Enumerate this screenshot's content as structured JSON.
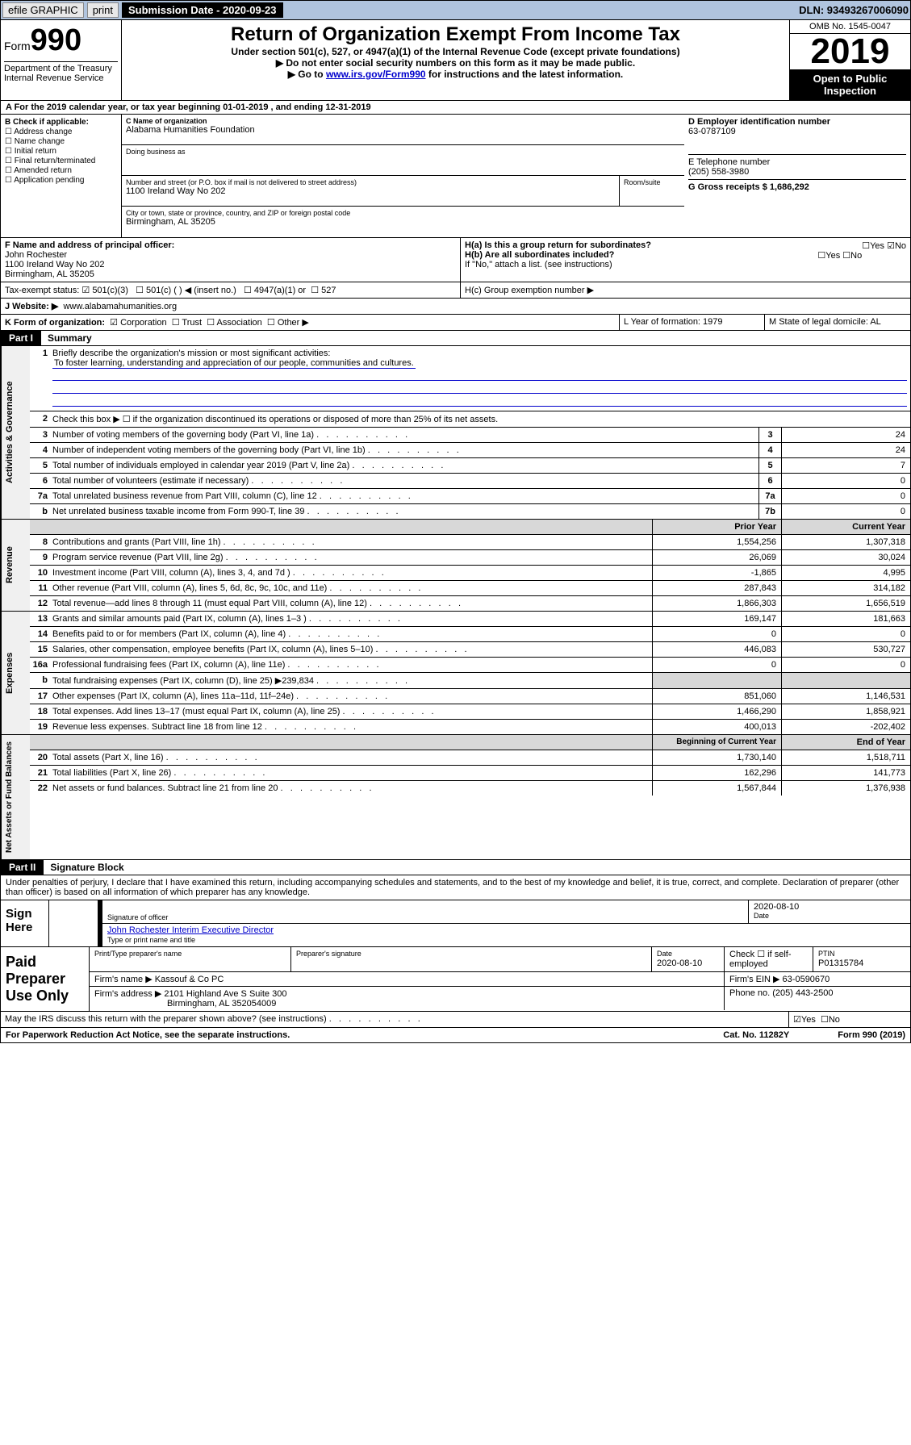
{
  "topbar": {
    "efile": "efile GRAPHIC",
    "print": "print",
    "sub_label": "Submission Date - 2020-09-23",
    "dln": "DLN: 93493267006090"
  },
  "header": {
    "form": "Form",
    "formnum": "990",
    "dept": "Department of the Treasury Internal Revenue Service",
    "title": "Return of Organization Exempt From Income Tax",
    "sub1": "Under section 501(c), 527, or 4947(a)(1) of the Internal Revenue Code (except private foundations)",
    "sub2": "▶ Do not enter social security numbers on this form as it may be made public.",
    "sub3a": "▶ Go to ",
    "sub3link": "www.irs.gov/Form990",
    "sub3b": " for instructions and the latest information.",
    "omb": "OMB No. 1545-0047",
    "year": "2019",
    "inspect": "Open to Public Inspection"
  },
  "sectA": "A For the 2019 calendar year, or tax year beginning 01-01-2019   , and ending 12-31-2019",
  "sectB": {
    "label": "B Check if applicable:",
    "items": [
      "Address change",
      "Name change",
      "Initial return",
      "Final return/terminated",
      "Amended return",
      "Application pending"
    ]
  },
  "sectC": {
    "label": "C Name of organization",
    "name": "Alabama Humanities Foundation",
    "dba_label": "Doing business as",
    "addr_label": "Number and street (or P.O. box if mail is not delivered to street address)",
    "room_label": "Room/suite",
    "addr": "1100 Ireland Way No 202",
    "city_label": "City or town, state or province, country, and ZIP or foreign postal code",
    "city": "Birmingham, AL  35205"
  },
  "sectD": {
    "label": "D Employer identification number",
    "val": "63-0787109"
  },
  "sectE": {
    "label": "E Telephone number",
    "val": "(205) 558-3980"
  },
  "sectG": {
    "label": "G Gross receipts $ 1,686,292"
  },
  "sectF": {
    "label": "F  Name and address of principal officer:",
    "name": "John Rochester",
    "addr": "1100 Ireland Way No 202",
    "city": "Birmingham, AL  35205"
  },
  "sectH": {
    "a": "H(a)  Is this a group return for subordinates?",
    "b": "H(b)  Are all subordinates included?",
    "bnote": "If \"No,\" attach a list. (see instructions)",
    "c": "H(c)  Group exemption number ▶",
    "yes": "Yes",
    "no": "No"
  },
  "sectI": {
    "label": "Tax-exempt status:",
    "opts": [
      "501(c)(3)",
      "501(c) (  ) ◀ (insert no.)",
      "4947(a)(1) or",
      "527"
    ]
  },
  "sectJ": {
    "label": "J     Website: ▶",
    "val": "www.alabamahumanities.org"
  },
  "sectK": {
    "label": "K Form of organization:",
    "opts": [
      "Corporation",
      "Trust",
      "Association",
      "Other ▶"
    ]
  },
  "sectL": {
    "label": "L Year of formation: 1979"
  },
  "sectM": {
    "label": "M State of legal domicile: AL"
  },
  "part1": {
    "label": "Part I",
    "title": "Summary"
  },
  "summary_lines": {
    "l1": "Briefly describe the organization's mission or most significant activities:",
    "l1v": "To foster learning, understanding and appreciation of our people, communities and cultures.",
    "l2": "Check this box ▶ ☐  if the organization discontinued its operations or disposed of more than 25% of its net assets.",
    "l3": "Number of voting members of the governing body (Part VI, line 1a)",
    "l4": "Number of independent voting members of the governing body (Part VI, line 1b)",
    "l5": "Total number of individuals employed in calendar year 2019 (Part V, line 2a)",
    "l6": "Total number of volunteers (estimate if necessary)",
    "l7a": "Total unrelated business revenue from Part VIII, column (C), line 12",
    "l7b": "Net unrelated business taxable income from Form 990-T, line 39"
  },
  "summary_vals": {
    "l3": "24",
    "l4": "24",
    "l5": "7",
    "l6": "0",
    "l7a": "0",
    "l7b": "0"
  },
  "rev_head": {
    "prior": "Prior Year",
    "cur": "Current Year",
    "beg": "Beginning of Current Year",
    "end": "End of Year"
  },
  "revenue": [
    {
      "n": "8",
      "t": "Contributions and grants (Part VIII, line 1h)",
      "p": "1,554,256",
      "c": "1,307,318"
    },
    {
      "n": "9",
      "t": "Program service revenue (Part VIII, line 2g)",
      "p": "26,069",
      "c": "30,024"
    },
    {
      "n": "10",
      "t": "Investment income (Part VIII, column (A), lines 3, 4, and 7d )",
      "p": "-1,865",
      "c": "4,995"
    },
    {
      "n": "11",
      "t": "Other revenue (Part VIII, column (A), lines 5, 6d, 8c, 9c, 10c, and 11e)",
      "p": "287,843",
      "c": "314,182"
    },
    {
      "n": "12",
      "t": "Total revenue—add lines 8 through 11 (must equal Part VIII, column (A), line 12)",
      "p": "1,866,303",
      "c": "1,656,519"
    }
  ],
  "expenses": [
    {
      "n": "13",
      "t": "Grants and similar amounts paid (Part IX, column (A), lines 1–3 )",
      "p": "169,147",
      "c": "181,663"
    },
    {
      "n": "14",
      "t": "Benefits paid to or for members (Part IX, column (A), line 4)",
      "p": "0",
      "c": "0"
    },
    {
      "n": "15",
      "t": "Salaries, other compensation, employee benefits (Part IX, column (A), lines 5–10)",
      "p": "446,083",
      "c": "530,727"
    },
    {
      "n": "16a",
      "t": "Professional fundraising fees (Part IX, column (A), line 11e)",
      "p": "0",
      "c": "0"
    },
    {
      "n": "b",
      "t": "Total fundraising expenses (Part IX, column (D), line 25) ▶239,834",
      "p": "",
      "c": "",
      "gray": true
    },
    {
      "n": "17",
      "t": "Other expenses (Part IX, column (A), lines 11a–11d, 11f–24e)",
      "p": "851,060",
      "c": "1,146,531"
    },
    {
      "n": "18",
      "t": "Total expenses. Add lines 13–17 (must equal Part IX, column (A), line 25)",
      "p": "1,466,290",
      "c": "1,858,921"
    },
    {
      "n": "19",
      "t": "Revenue less expenses. Subtract line 18 from line 12",
      "p": "400,013",
      "c": "-202,402"
    }
  ],
  "net": [
    {
      "n": "20",
      "t": "Total assets (Part X, line 16)",
      "p": "1,730,140",
      "c": "1,518,711"
    },
    {
      "n": "21",
      "t": "Total liabilities (Part X, line 26)",
      "p": "162,296",
      "c": "141,773"
    },
    {
      "n": "22",
      "t": "Net assets or fund balances. Subtract line 21 from line 20",
      "p": "1,567,844",
      "c": "1,376,938"
    }
  ],
  "vlabels": {
    "gov": "Activities & Governance",
    "rev": "Revenue",
    "exp": "Expenses",
    "net": "Net Assets or Fund Balances"
  },
  "part2": {
    "label": "Part II",
    "title": "Signature Block"
  },
  "perjury": "Under penalties of perjury, I declare that I have examined this return, including accompanying schedules and statements, and to the best of my knowledge and belief, it is true, correct, and complete. Declaration of preparer (other than officer) is based on all information of which preparer has any knowledge.",
  "sign": {
    "here": "Sign Here",
    "sigoff": "Signature of officer",
    "date1": "2020-08-10",
    "datelab": "Date",
    "name": "John Rochester Interim Executive Director",
    "namelab": "Type or print name and title"
  },
  "paid": {
    "label": "Paid Preparer Use Only",
    "h1": "Print/Type preparer's name",
    "h2": "Preparer's signature",
    "h3": "Date",
    "h3v": "2020-08-10",
    "h4": "Check ☐ if self-employed",
    "h5": "PTIN",
    "h5v": "P01315784",
    "firm": "Firm's name    ▶ Kassouf & Co PC",
    "ein": "Firm's EIN ▶ 63-0590670",
    "addr": "Firm's address ▶ 2101 Highland Ave S Suite 300",
    "addr2": "Birmingham, AL  352054009",
    "phone": "Phone no. (205) 443-2500"
  },
  "discuss": "May the IRS discuss this return with the preparer shown above? (see instructions)",
  "footer": {
    "pra": "For Paperwork Reduction Act Notice, see the separate instructions.",
    "cat": "Cat. No. 11282Y",
    "form": "Form 990 (2019)"
  }
}
